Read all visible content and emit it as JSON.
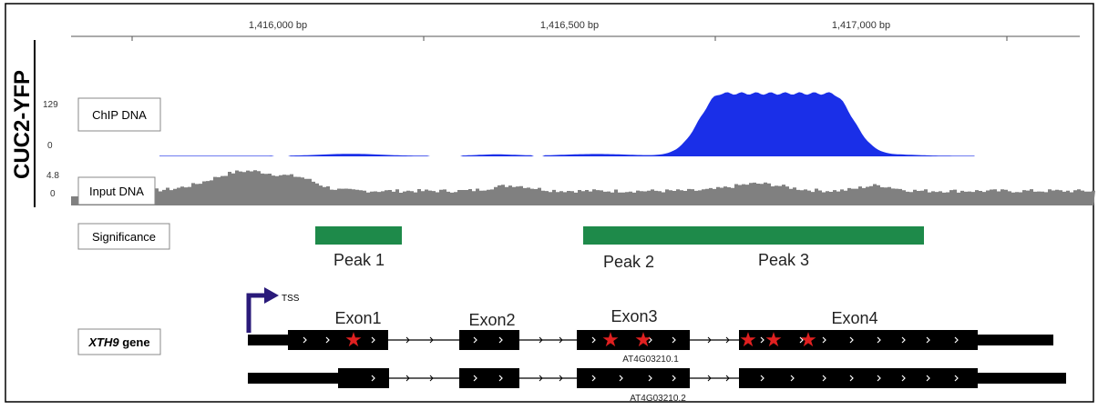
{
  "sample_label": "CUC2-YFP",
  "ruler": {
    "ticks": [
      {
        "label": "1,416,000 bp",
        "pos": 1416000
      },
      {
        "label": "1,416,500 bp",
        "pos": 1416500
      },
      {
        "label": "1,417,000 bp",
        "pos": 1417000
      }
    ]
  },
  "tracks": {
    "chip": {
      "label": "ChIP DNA",
      "max": "129",
      "min": "0",
      "color": "#1a2fe8"
    },
    "input": {
      "label": "Input DNA",
      "max": "4.8",
      "min": "0",
      "color": "#808080"
    },
    "significance": {
      "label": "Significance",
      "color": "#1e8a4a"
    },
    "gene": {
      "label_italic": "XTH9",
      "label_rest": " gene"
    }
  },
  "peaks": [
    {
      "label": "Peak 1"
    },
    {
      "label": "Peak 2"
    },
    {
      "label": "Peak 3"
    }
  ],
  "tss_label": "TSS",
  "exons": [
    {
      "label": "Exon1"
    },
    {
      "label": "Exon2"
    },
    {
      "label": "Exon3"
    },
    {
      "label": "Exon4"
    }
  ],
  "transcripts": [
    {
      "id": "AT4G03210.1"
    },
    {
      "id": "AT4G03210.2"
    }
  ],
  "marker_color": "#e02020"
}
